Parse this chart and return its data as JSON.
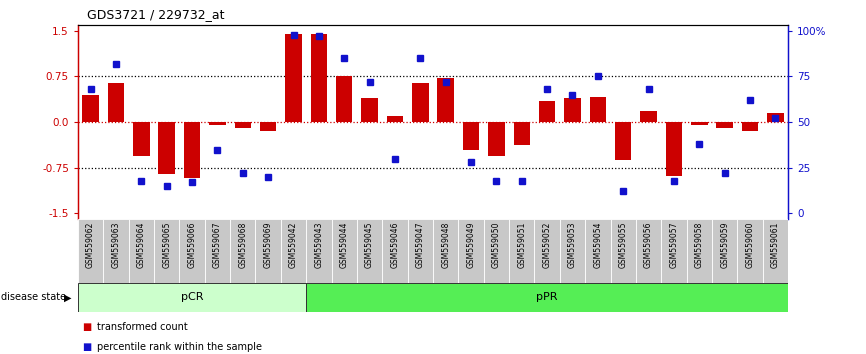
{
  "title": "GDS3721 / 229732_at",
  "samples": [
    "GSM559062",
    "GSM559063",
    "GSM559064",
    "GSM559065",
    "GSM559066",
    "GSM559067",
    "GSM559068",
    "GSM559069",
    "GSM559042",
    "GSM559043",
    "GSM559044",
    "GSM559045",
    "GSM559046",
    "GSM559047",
    "GSM559048",
    "GSM559049",
    "GSM559050",
    "GSM559051",
    "GSM559052",
    "GSM559053",
    "GSM559054",
    "GSM559055",
    "GSM559056",
    "GSM559057",
    "GSM559058",
    "GSM559059",
    "GSM559060",
    "GSM559061"
  ],
  "transformed_count": [
    0.45,
    0.65,
    -0.55,
    -0.85,
    -0.92,
    -0.05,
    -0.1,
    -0.15,
    1.45,
    1.45,
    0.75,
    0.4,
    0.1,
    0.65,
    0.72,
    -0.45,
    -0.55,
    -0.38,
    0.35,
    0.4,
    0.42,
    -0.62,
    0.18,
    -0.88,
    -0.05,
    -0.1,
    -0.15,
    0.15
  ],
  "percentile_rank": [
    68,
    82,
    18,
    15,
    17,
    35,
    22,
    20,
    98,
    97,
    85,
    72,
    30,
    85,
    72,
    28,
    18,
    18,
    68,
    65,
    75,
    12,
    68,
    18,
    38,
    22,
    62,
    52
  ],
  "pCR_count": 9,
  "pPR_count": 19,
  "bar_color": "#cc0000",
  "dot_color": "#1111cc",
  "ylim": [
    -1.6,
    1.6
  ],
  "yticks": [
    -1.5,
    -0.75,
    0.0,
    0.75,
    1.5
  ],
  "right_yticks": [
    0,
    25,
    50,
    75,
    100
  ],
  "pCR_color": "#ccffcc",
  "pPR_color": "#55ee55",
  "label_bg_color": "#c8c8c8"
}
